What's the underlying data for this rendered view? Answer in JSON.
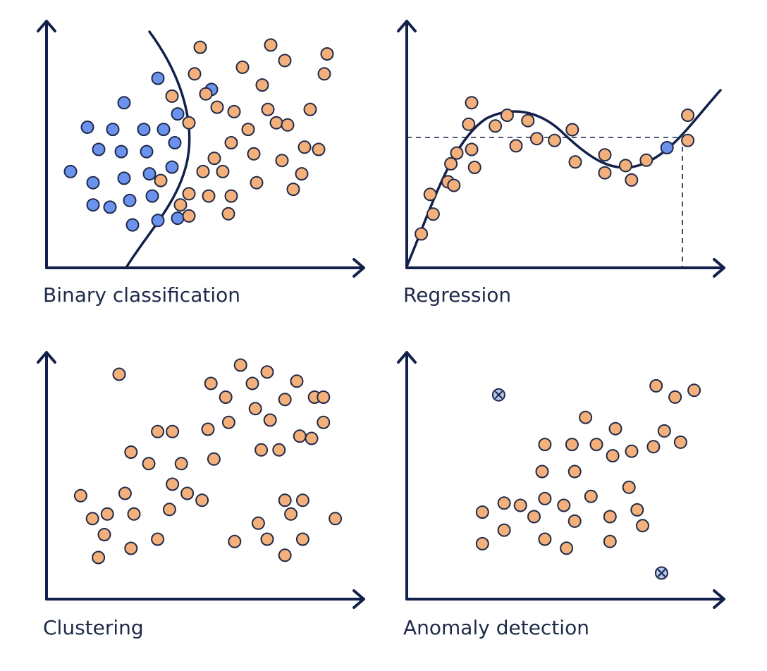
{
  "colors": {
    "orange": "#f4b07b",
    "blue": "#6b93ee",
    "anomaly": "#b7c6ea",
    "ink": "#13214a"
  },
  "panels": [
    {
      "id": "binary",
      "caption": "Binary classification",
      "points": [
        {
          "x": 0.05,
          "y": 0.37,
          "c": "blue"
        },
        {
          "x": 0.11,
          "y": 0.57,
          "c": "blue"
        },
        {
          "x": 0.15,
          "y": 0.47,
          "c": "blue"
        },
        {
          "x": 0.13,
          "y": 0.32,
          "c": "blue"
        },
        {
          "x": 0.13,
          "y": 0.22,
          "c": "blue"
        },
        {
          "x": 0.19,
          "y": 0.21,
          "c": "blue"
        },
        {
          "x": 0.2,
          "y": 0.56,
          "c": "blue"
        },
        {
          "x": 0.24,
          "y": 0.68,
          "c": "blue"
        },
        {
          "x": 0.23,
          "y": 0.46,
          "c": "blue"
        },
        {
          "x": 0.24,
          "y": 0.34,
          "c": "blue"
        },
        {
          "x": 0.26,
          "y": 0.24,
          "c": "blue"
        },
        {
          "x": 0.27,
          "y": 0.13,
          "c": "blue"
        },
        {
          "x": 0.31,
          "y": 0.56,
          "c": "blue"
        },
        {
          "x": 0.32,
          "y": 0.46,
          "c": "blue"
        },
        {
          "x": 0.33,
          "y": 0.36,
          "c": "blue"
        },
        {
          "x": 0.34,
          "y": 0.26,
          "c": "blue"
        },
        {
          "x": 0.36,
          "y": 0.15,
          "c": "blue"
        },
        {
          "x": 0.36,
          "y": 0.79,
          "c": "blue"
        },
        {
          "x": 0.38,
          "y": 0.56,
          "c": "blue"
        },
        {
          "x": 0.41,
          "y": 0.39,
          "c": "blue"
        },
        {
          "x": 0.42,
          "y": 0.5,
          "c": "blue"
        },
        {
          "x": 0.43,
          "y": 0.63,
          "c": "blue"
        },
        {
          "x": 0.43,
          "y": 0.16,
          "c": "blue"
        },
        {
          "x": 0.55,
          "y": 0.74,
          "c": "blue"
        },
        {
          "x": 0.37,
          "y": 0.33,
          "c": "orange"
        },
        {
          "x": 0.41,
          "y": 0.71,
          "c": "orange"
        },
        {
          "x": 0.44,
          "y": 0.22,
          "c": "orange"
        },
        {
          "x": 0.47,
          "y": 0.59,
          "c": "orange"
        },
        {
          "x": 0.49,
          "y": 0.81,
          "c": "orange"
        },
        {
          "x": 0.51,
          "y": 0.93,
          "c": "orange"
        },
        {
          "x": 0.47,
          "y": 0.17,
          "c": "orange"
        },
        {
          "x": 0.47,
          "y": 0.27,
          "c": "orange"
        },
        {
          "x": 0.53,
          "y": 0.72,
          "c": "orange"
        },
        {
          "x": 0.52,
          "y": 0.37,
          "c": "orange"
        },
        {
          "x": 0.54,
          "y": 0.26,
          "c": "orange"
        },
        {
          "x": 0.56,
          "y": 0.43,
          "c": "orange"
        },
        {
          "x": 0.57,
          "y": 0.66,
          "c": "orange"
        },
        {
          "x": 0.59,
          "y": 0.37,
          "c": "orange"
        },
        {
          "x": 0.61,
          "y": 0.18,
          "c": "orange"
        },
        {
          "x": 0.62,
          "y": 0.26,
          "c": "orange"
        },
        {
          "x": 0.62,
          "y": 0.5,
          "c": "orange"
        },
        {
          "x": 0.63,
          "y": 0.64,
          "c": "orange"
        },
        {
          "x": 0.66,
          "y": 0.84,
          "c": "orange"
        },
        {
          "x": 0.68,
          "y": 0.56,
          "c": "orange"
        },
        {
          "x": 0.7,
          "y": 0.45,
          "c": "orange"
        },
        {
          "x": 0.71,
          "y": 0.32,
          "c": "orange"
        },
        {
          "x": 0.73,
          "y": 0.76,
          "c": "orange"
        },
        {
          "x": 0.75,
          "y": 0.65,
          "c": "orange"
        },
        {
          "x": 0.76,
          "y": 0.94,
          "c": "orange"
        },
        {
          "x": 0.78,
          "y": 0.59,
          "c": "orange"
        },
        {
          "x": 0.8,
          "y": 0.42,
          "c": "orange"
        },
        {
          "x": 0.81,
          "y": 0.87,
          "c": "orange"
        },
        {
          "x": 0.82,
          "y": 0.58,
          "c": "orange"
        },
        {
          "x": 0.84,
          "y": 0.29,
          "c": "orange"
        },
        {
          "x": 0.87,
          "y": 0.36,
          "c": "orange"
        },
        {
          "x": 0.88,
          "y": 0.48,
          "c": "orange"
        },
        {
          "x": 0.9,
          "y": 0.65,
          "c": "orange"
        },
        {
          "x": 0.93,
          "y": 0.47,
          "c": "orange"
        },
        {
          "x": 0.95,
          "y": 0.81,
          "c": "orange"
        },
        {
          "x": 0.96,
          "y": 0.9,
          "c": "orange"
        }
      ]
    },
    {
      "id": "regression",
      "caption": "Regression",
      "points": [
        {
          "x": 0.03,
          "y": 0.13,
          "c": "orange"
        },
        {
          "x": 0.07,
          "y": 0.24,
          "c": "orange"
        },
        {
          "x": 0.06,
          "y": 0.35,
          "c": "orange"
        },
        {
          "x": 0.12,
          "y": 0.42,
          "c": "orange"
        },
        {
          "x": 0.13,
          "y": 0.52,
          "c": "orange"
        },
        {
          "x": 0.15,
          "y": 0.58,
          "c": "orange"
        },
        {
          "x": 0.14,
          "y": 0.4,
          "c": "orange"
        },
        {
          "x": 0.21,
          "y": 0.5,
          "c": "orange"
        },
        {
          "x": 0.2,
          "y": 0.6,
          "c": "orange"
        },
        {
          "x": 0.19,
          "y": 0.74,
          "c": "orange"
        },
        {
          "x": 0.2,
          "y": 0.86,
          "c": "orange"
        },
        {
          "x": 0.28,
          "y": 0.73,
          "c": "orange"
        },
        {
          "x": 0.32,
          "y": 0.79,
          "c": "orange"
        },
        {
          "x": 0.35,
          "y": 0.62,
          "c": "orange"
        },
        {
          "x": 0.39,
          "y": 0.76,
          "c": "orange"
        },
        {
          "x": 0.42,
          "y": 0.66,
          "c": "orange"
        },
        {
          "x": 0.48,
          "y": 0.65,
          "c": "orange"
        },
        {
          "x": 0.54,
          "y": 0.71,
          "c": "orange"
        },
        {
          "x": 0.55,
          "y": 0.53,
          "c": "orange"
        },
        {
          "x": 0.65,
          "y": 0.57,
          "c": "orange"
        },
        {
          "x": 0.65,
          "y": 0.47,
          "c": "orange"
        },
        {
          "x": 0.72,
          "y": 0.51,
          "c": "orange"
        },
        {
          "x": 0.74,
          "y": 0.43,
          "c": "orange"
        },
        {
          "x": 0.79,
          "y": 0.54,
          "c": "orange"
        },
        {
          "x": 0.93,
          "y": 0.79,
          "c": "orange"
        },
        {
          "x": 0.93,
          "y": 0.65,
          "c": "orange"
        },
        {
          "x": 0.86,
          "y": 0.61,
          "c": "blue"
        }
      ]
    },
    {
      "id": "clustering",
      "caption": "Clustering",
      "points": [
        {
          "x": 0.2,
          "y": 0.92,
          "c": "orange"
        },
        {
          "x": 0.07,
          "y": 0.39,
          "c": "orange"
        },
        {
          "x": 0.11,
          "y": 0.29,
          "c": "orange"
        },
        {
          "x": 0.15,
          "y": 0.22,
          "c": "orange"
        },
        {
          "x": 0.13,
          "y": 0.12,
          "c": "orange"
        },
        {
          "x": 0.22,
          "y": 0.4,
          "c": "orange"
        },
        {
          "x": 0.24,
          "y": 0.58,
          "c": "orange"
        },
        {
          "x": 0.25,
          "y": 0.31,
          "c": "orange"
        },
        {
          "x": 0.24,
          "y": 0.16,
          "c": "orange"
        },
        {
          "x": 0.3,
          "y": 0.53,
          "c": "orange"
        },
        {
          "x": 0.33,
          "y": 0.2,
          "c": "orange"
        },
        {
          "x": 0.38,
          "y": 0.44,
          "c": "orange"
        },
        {
          "x": 0.37,
          "y": 0.33,
          "c": "orange"
        },
        {
          "x": 0.33,
          "y": 0.67,
          "c": "orange"
        },
        {
          "x": 0.38,
          "y": 0.67,
          "c": "orange"
        },
        {
          "x": 0.41,
          "y": 0.53,
          "c": "orange"
        },
        {
          "x": 0.48,
          "y": 0.37,
          "c": "orange"
        },
        {
          "x": 0.43,
          "y": 0.4,
          "c": "orange"
        },
        {
          "x": 0.16,
          "y": 0.31,
          "c": "orange"
        },
        {
          "x": 0.5,
          "y": 0.68,
          "c": "orange"
        },
        {
          "x": 0.52,
          "y": 0.55,
          "c": "orange"
        },
        {
          "x": 0.51,
          "y": 0.88,
          "c": "orange"
        },
        {
          "x": 0.56,
          "y": 0.82,
          "c": "orange"
        },
        {
          "x": 0.57,
          "y": 0.71,
          "c": "orange"
        },
        {
          "x": 0.61,
          "y": 0.96,
          "c": "orange"
        },
        {
          "x": 0.65,
          "y": 0.88,
          "c": "orange"
        },
        {
          "x": 0.66,
          "y": 0.77,
          "c": "orange"
        },
        {
          "x": 0.68,
          "y": 0.59,
          "c": "orange"
        },
        {
          "x": 0.71,
          "y": 0.72,
          "c": "orange"
        },
        {
          "x": 0.7,
          "y": 0.93,
          "c": "orange"
        },
        {
          "x": 0.74,
          "y": 0.59,
          "c": "orange"
        },
        {
          "x": 0.76,
          "y": 0.81,
          "c": "orange"
        },
        {
          "x": 0.81,
          "y": 0.65,
          "c": "orange"
        },
        {
          "x": 0.8,
          "y": 0.89,
          "c": "orange"
        },
        {
          "x": 0.86,
          "y": 0.82,
          "c": "orange"
        },
        {
          "x": 0.85,
          "y": 0.64,
          "c": "orange"
        },
        {
          "x": 0.89,
          "y": 0.71,
          "c": "orange"
        },
        {
          "x": 0.59,
          "y": 0.19,
          "c": "orange"
        },
        {
          "x": 0.67,
          "y": 0.27,
          "c": "orange"
        },
        {
          "x": 0.7,
          "y": 0.2,
          "c": "orange"
        },
        {
          "x": 0.76,
          "y": 0.13,
          "c": "orange"
        },
        {
          "x": 0.76,
          "y": 0.37,
          "c": "orange"
        },
        {
          "x": 0.82,
          "y": 0.2,
          "c": "orange"
        },
        {
          "x": 0.78,
          "y": 0.31,
          "c": "orange"
        },
        {
          "x": 0.82,
          "y": 0.37,
          "c": "orange"
        },
        {
          "x": 0.93,
          "y": 0.29,
          "c": "orange"
        },
        {
          "x": 0.89,
          "y": 0.82,
          "c": "orange"
        }
      ]
    },
    {
      "id": "anomaly",
      "caption": "Anomaly detection",
      "points": [
        {
          "x": 0.18,
          "y": 0.23,
          "c": "orange"
        },
        {
          "x": 0.18,
          "y": 0.37,
          "c": "orange"
        },
        {
          "x": 0.26,
          "y": 0.29,
          "c": "orange"
        },
        {
          "x": 0.26,
          "y": 0.41,
          "c": "orange"
        },
        {
          "x": 0.32,
          "y": 0.4,
          "c": "orange"
        },
        {
          "x": 0.37,
          "y": 0.35,
          "c": "orange"
        },
        {
          "x": 0.41,
          "y": 0.43,
          "c": "orange"
        },
        {
          "x": 0.41,
          "y": 0.25,
          "c": "orange"
        },
        {
          "x": 0.4,
          "y": 0.55,
          "c": "orange"
        },
        {
          "x": 0.41,
          "y": 0.67,
          "c": "orange"
        },
        {
          "x": 0.49,
          "y": 0.21,
          "c": "orange"
        },
        {
          "x": 0.48,
          "y": 0.4,
          "c": "orange"
        },
        {
          "x": 0.52,
          "y": 0.33,
          "c": "orange"
        },
        {
          "x": 0.52,
          "y": 0.55,
          "c": "orange"
        },
        {
          "x": 0.51,
          "y": 0.67,
          "c": "orange"
        },
        {
          "x": 0.56,
          "y": 0.79,
          "c": "orange"
        },
        {
          "x": 0.58,
          "y": 0.44,
          "c": "orange"
        },
        {
          "x": 0.6,
          "y": 0.67,
          "c": "orange"
        },
        {
          "x": 0.65,
          "y": 0.35,
          "c": "orange"
        },
        {
          "x": 0.65,
          "y": 0.24,
          "c": "orange"
        },
        {
          "x": 0.66,
          "y": 0.62,
          "c": "orange"
        },
        {
          "x": 0.67,
          "y": 0.74,
          "c": "orange"
        },
        {
          "x": 0.72,
          "y": 0.48,
          "c": "orange"
        },
        {
          "x": 0.73,
          "y": 0.64,
          "c": "orange"
        },
        {
          "x": 0.75,
          "y": 0.38,
          "c": "orange"
        },
        {
          "x": 0.77,
          "y": 0.31,
          "c": "orange"
        },
        {
          "x": 0.81,
          "y": 0.66,
          "c": "orange"
        },
        {
          "x": 0.85,
          "y": 0.73,
          "c": "orange"
        },
        {
          "x": 0.89,
          "y": 0.88,
          "c": "orange"
        },
        {
          "x": 0.82,
          "y": 0.93,
          "c": "orange"
        },
        {
          "x": 0.91,
          "y": 0.68,
          "c": "orange"
        },
        {
          "x": 0.96,
          "y": 0.91,
          "c": "orange"
        },
        {
          "x": 0.24,
          "y": 0.89,
          "c": "anomaly"
        },
        {
          "x": 0.84,
          "y": 0.1,
          "c": "anomaly"
        }
      ]
    }
  ]
}
